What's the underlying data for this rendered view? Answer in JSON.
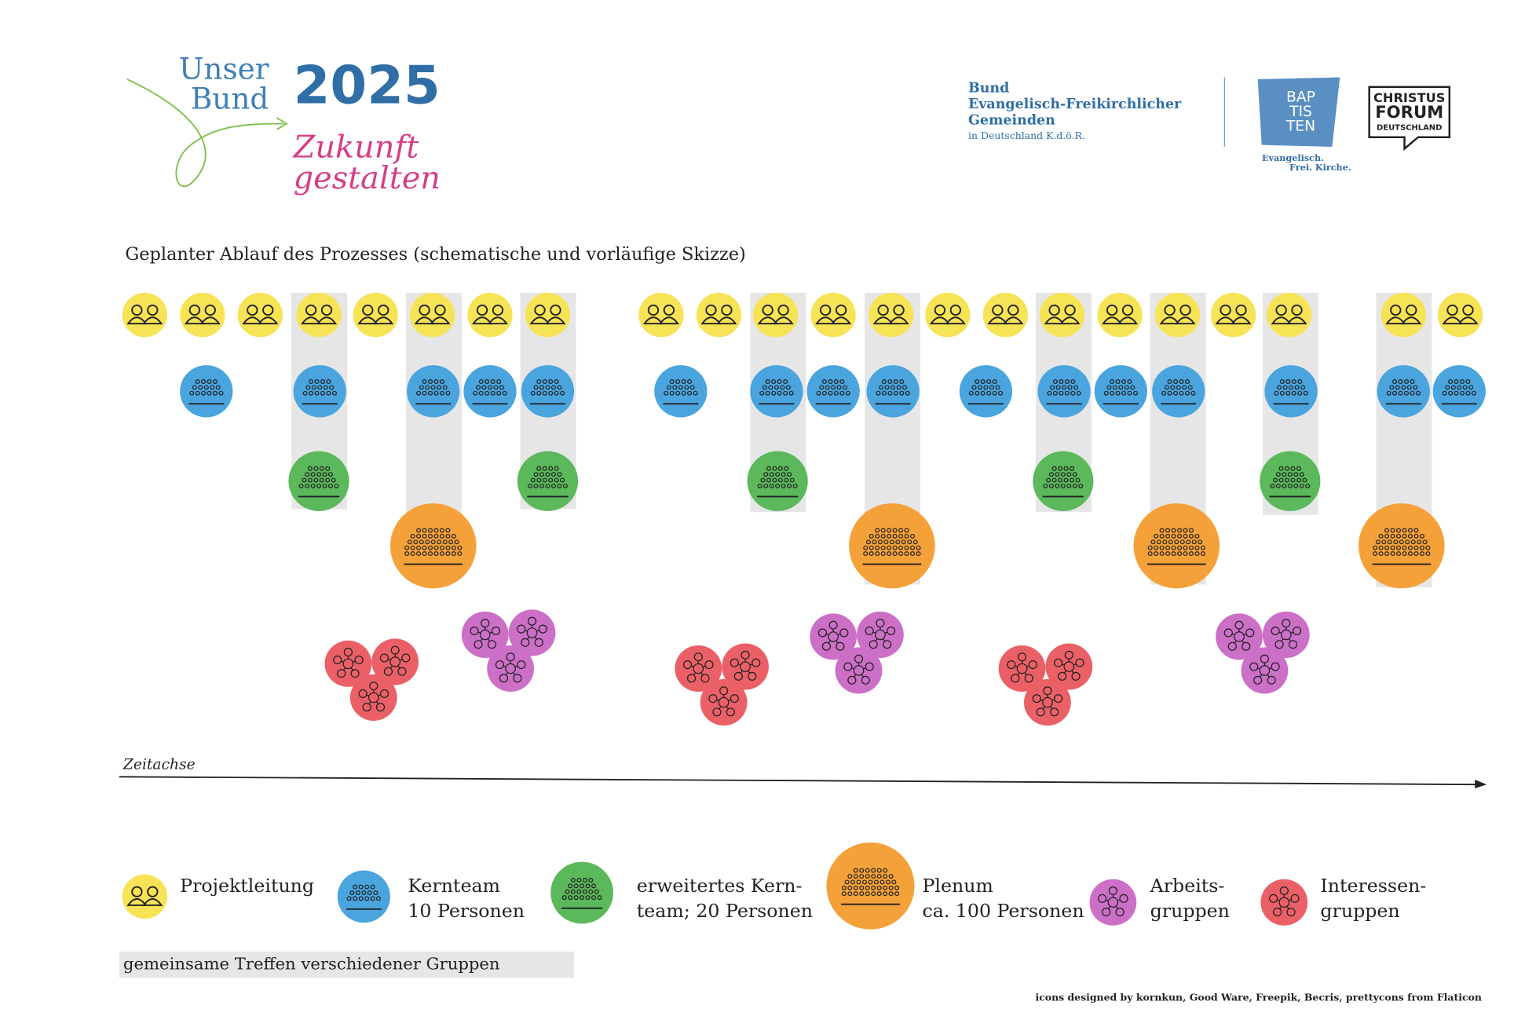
{
  "logo": {
    "line1": "Unser",
    "line2": "Bund",
    "year": "2025",
    "tagline1": "Zukunft",
    "tagline2": "gestalten"
  },
  "org": {
    "lines": [
      "Bund",
      "Evangelisch-Freikirchlicher",
      "Gemeinden"
    ],
    "sub": "in Deutschland K.d.ö.R."
  },
  "baptisten": {
    "lines": [
      "BAP",
      "TIS",
      "TEN"
    ],
    "claim": [
      "Evangelisch.",
      "Frei. Kirche."
    ]
  },
  "christus_forum": {
    "lines": [
      "CHRISTUS",
      "FORUM",
      "DEUTSCHLAND"
    ]
  },
  "heading": "Geplanter Ablauf des Prozesses (schematische und vorläufige Skizze)",
  "axis_label": "Zeitachse",
  "legend": [
    {
      "lines": [
        "Projektleitung"
      ]
    },
    {
      "lines": [
        "Kernteam",
        "10 Personen"
      ]
    },
    {
      "lines": [
        "erweitertes Kern-",
        "team; 20 Personen"
      ]
    },
    {
      "lines": [
        "Plenum",
        "ca. 100 Personen"
      ]
    },
    {
      "lines": [
        "Arbeits-",
        "gruppen"
      ]
    },
    {
      "lines": [
        "Interessen-",
        "gruppen"
      ]
    }
  ],
  "shared_meetings": "gemeinsame Treffen verschiedener Gruppen",
  "credits": "icons designed by kornkun, Good Ware, Freepik, Becris, prettycons from Flaticon"
}
